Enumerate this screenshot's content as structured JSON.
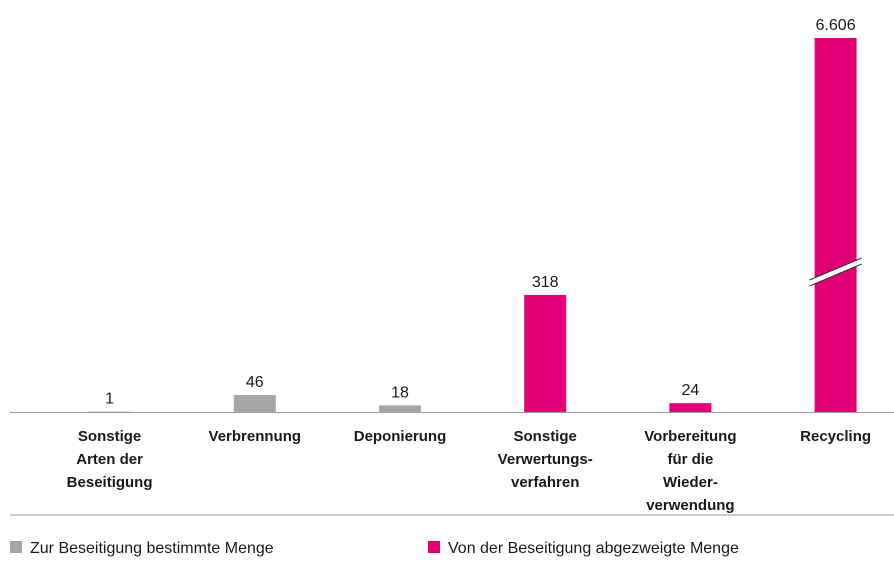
{
  "chart_data": {
    "type": "bar",
    "categories": [
      [
        "Sonstige",
        "Arten der",
        "Beseitigung"
      ],
      [
        "Verbrennung"
      ],
      [
        "Deponierung"
      ],
      [
        "Sonstige",
        "Verwertungs-",
        "verfahren"
      ],
      [
        "Vorbereitung",
        "für die",
        "Wieder-",
        "verwendung"
      ],
      [
        "Recycling"
      ]
    ],
    "series": [
      {
        "name": "Zur Beseitigung bestimmte Menge",
        "color": "#a6a6a6",
        "values": [
          1,
          46,
          18,
          null,
          null,
          null
        ]
      },
      {
        "name": "Von der Beseitigung abgezweigte Menge",
        "color": "#e20074",
        "values": [
          null,
          null,
          null,
          318,
          24,
          6606
        ],
        "value_labels": [
          null,
          null,
          null,
          null,
          null,
          "6.606"
        ]
      }
    ],
    "ylim": [
      0,
      1016
    ]
  }
}
